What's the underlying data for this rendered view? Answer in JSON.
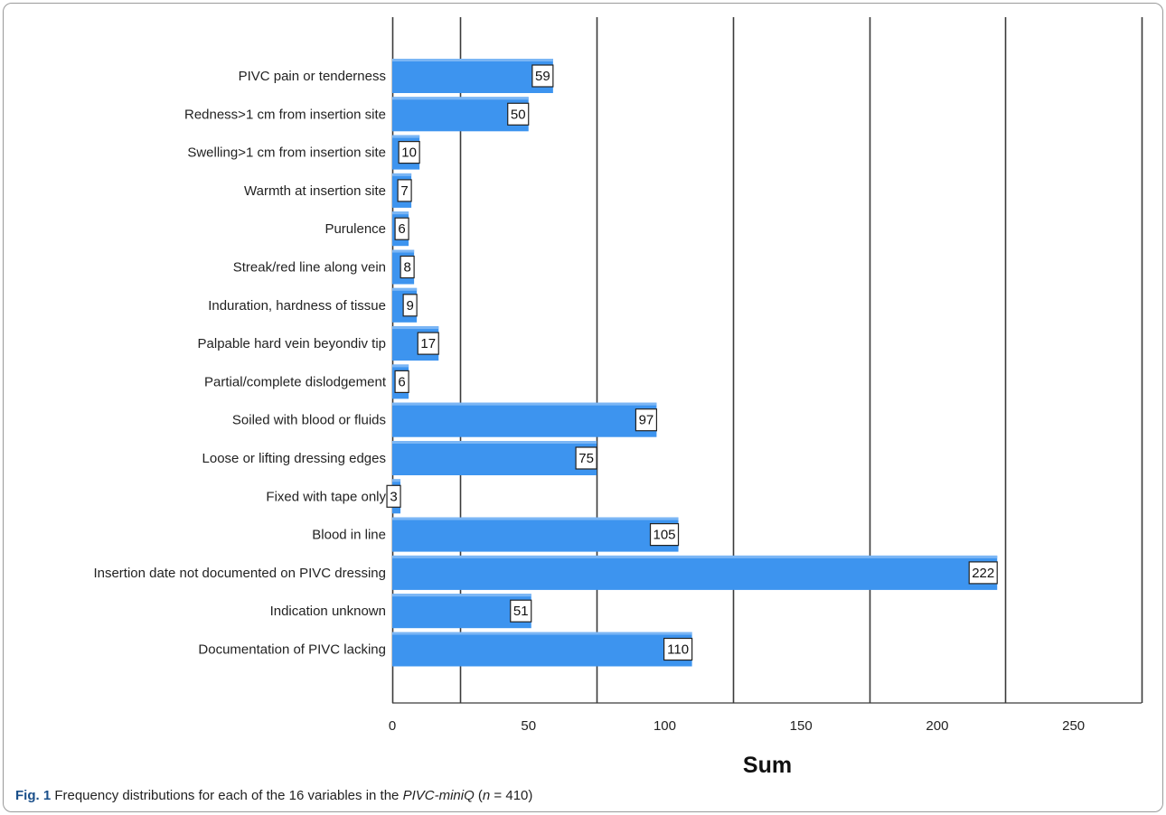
{
  "chart_data": {
    "type": "bar",
    "orientation": "horizontal",
    "categories": [
      "PIVC pain or tenderness",
      "Redness>1 cm from insertion site",
      "Swelling>1 cm from insertion site",
      "Warmth at insertion site",
      "Purulence",
      "Streak/red line along vein",
      "Induration, hardness of tissue",
      "Palpable hard vein beyondiv tip",
      "Partial/complete dislodgement",
      "Soiled with blood or fluids",
      "Loose or lifting dressing edges",
      "Fixed with tape only",
      "Blood in line",
      "Insertion date not documented on PIVC dressing",
      "Indication unknown",
      "Documentation of PIVC lacking"
    ],
    "values": [
      59,
      50,
      10,
      7,
      6,
      8,
      9,
      17,
      6,
      97,
      75,
      3,
      105,
      222,
      51,
      110
    ],
    "xlabel": "Sum",
    "ylabel": "",
    "xlim": [
      0,
      275
    ],
    "x_ticks": [
      0,
      50,
      100,
      150,
      200,
      250
    ],
    "gridlines": [
      0,
      25,
      75,
      125,
      175,
      225,
      275
    ],
    "data_labels": true,
    "legend": "none",
    "bar_color": "#3d94ef"
  },
  "caption": {
    "fig_label": "Fig. 1",
    "text_before": " Frequency distributions for each of the 16 variables in the ",
    "italic_1": "PIVC-miniQ",
    "text_mid": " (",
    "italic_2": "n",
    "text_after": " = 410)"
  }
}
